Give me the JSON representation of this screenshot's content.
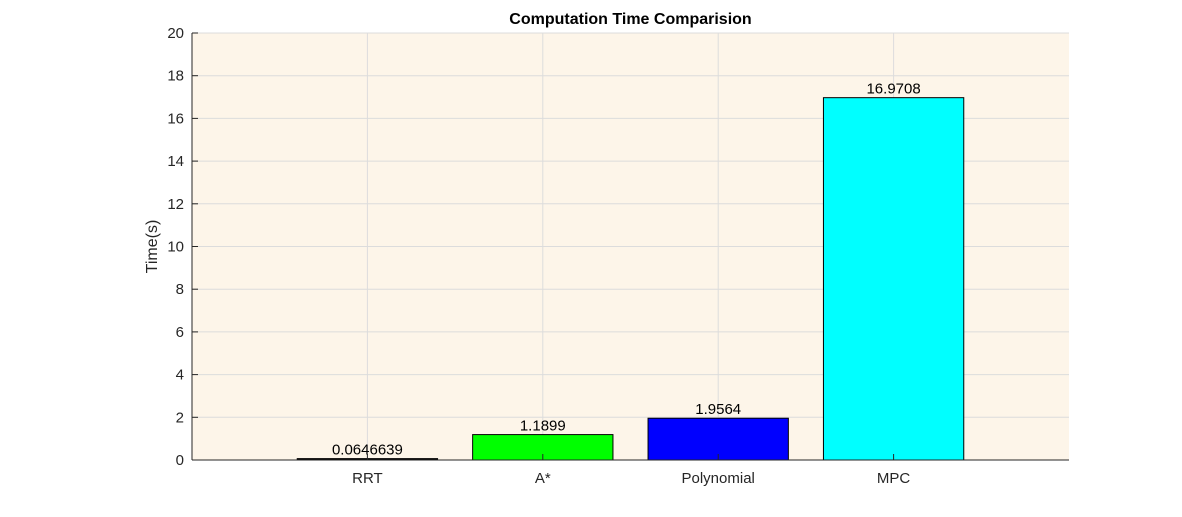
{
  "chart_data": {
    "type": "bar",
    "title": "Computation Time Comparision",
    "xlabel": "",
    "ylabel": "Time(s)",
    "categories": [
      "RRT",
      "A*",
      "Polynomial",
      "MPC"
    ],
    "values": [
      0.0646639,
      1.1899,
      1.9564,
      16.9708
    ],
    "data_labels": [
      "0.0646639",
      "1.1899",
      "1.9564",
      "16.9708"
    ],
    "bar_colors": [
      "#000000",
      "#00ff00",
      "#0000ff",
      "#00ffff"
    ],
    "ylim": [
      0,
      20
    ],
    "yticks": [
      0,
      2,
      4,
      6,
      8,
      10,
      12,
      14,
      16,
      18,
      20
    ],
    "xlim": [
      0,
      5
    ],
    "grid": true,
    "plot_background": "#fdf5e9"
  }
}
